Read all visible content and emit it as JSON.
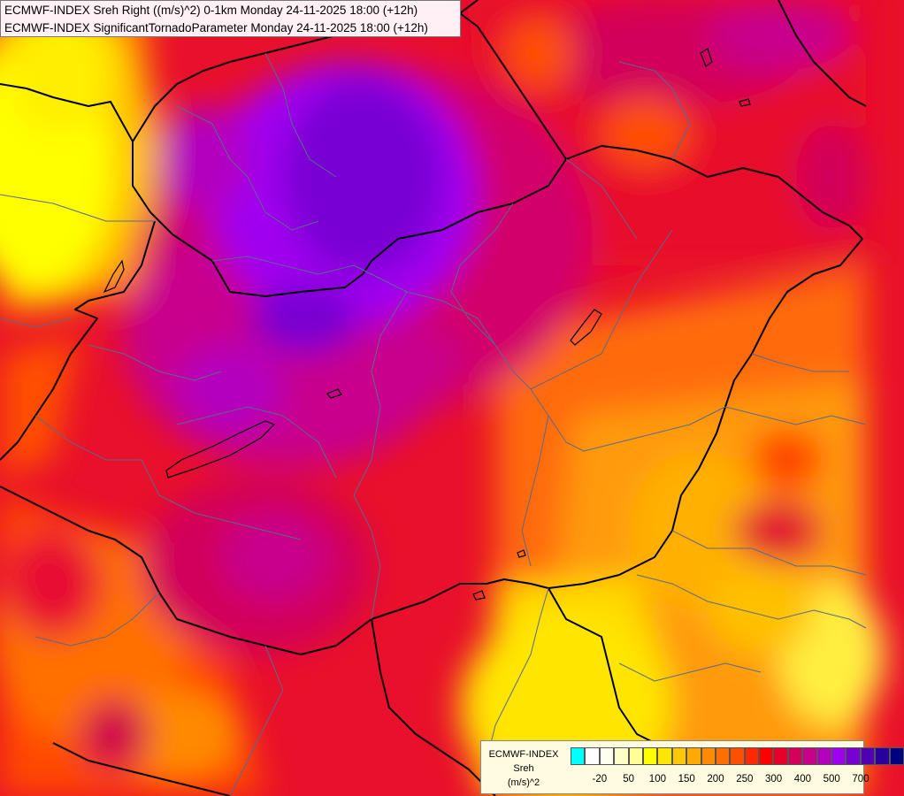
{
  "titles": {
    "line1": "ECMWF-INDEX Sreh Right ((m/s)^2) 0-1km Monday 24-11-2025 18:00 (+12h)",
    "line2": "ECMWF-INDEX SignificantTornadoParameter Monday 24-11-2025 18:00 (+12h)"
  },
  "legend": {
    "name_lines": [
      "ECMWF-INDEX",
      "Sreh",
      "(m/s)^2"
    ],
    "colors": [
      "#00ffff",
      "#ffffff",
      "#fffff0",
      "#ffffc8",
      "#ffff96",
      "#ffff00",
      "#ffe600",
      "#ffc800",
      "#ffaa00",
      "#ff8c00",
      "#ff6e00",
      "#ff5000",
      "#ff2800",
      "#ff0000",
      "#e60028",
      "#d2005a",
      "#c8008c",
      "#b400be",
      "#a000f0",
      "#7800d2",
      "#5000b4",
      "#28009b",
      "#000080"
    ],
    "ticks": [
      {
        "label": "-20",
        "index": 1
      },
      {
        "label": "50",
        "index": 3
      },
      {
        "label": "100",
        "index": 5
      },
      {
        "label": "150",
        "index": 7
      },
      {
        "label": "200",
        "index": 9
      },
      {
        "label": "250",
        "index": 11
      },
      {
        "label": "300",
        "index": 13
      },
      {
        "label": "400",
        "index": 15
      },
      {
        "label": "500",
        "index": 17
      },
      {
        "label": "700",
        "index": 19
      }
    ]
  }
}
